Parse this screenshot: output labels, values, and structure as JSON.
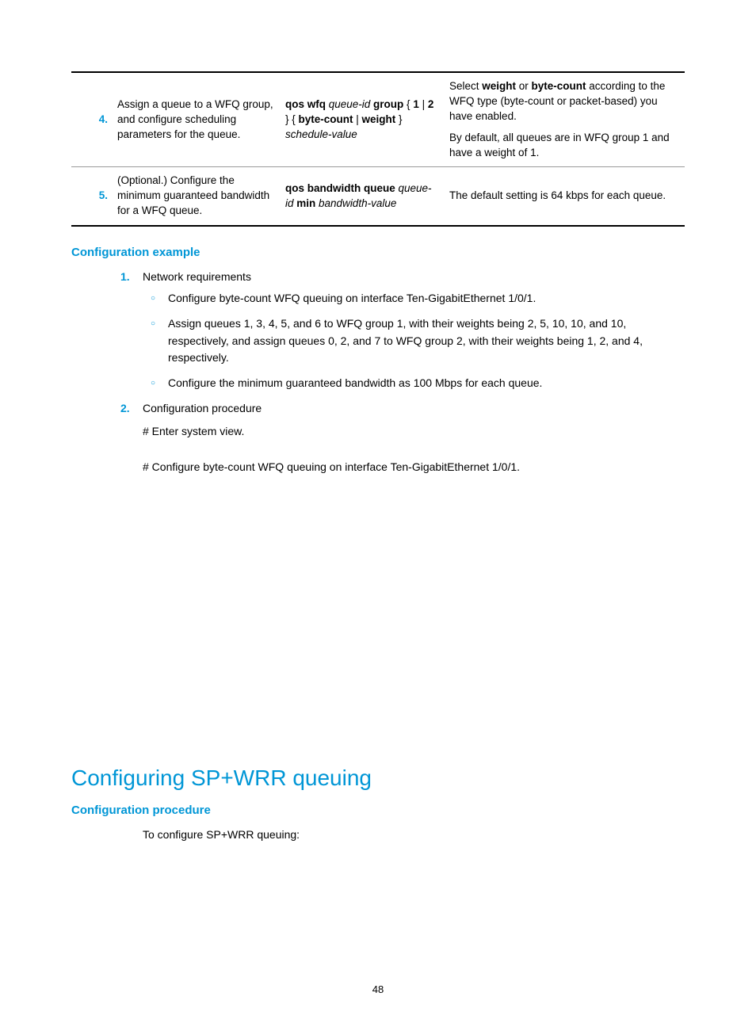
{
  "table": {
    "rows": [
      {
        "num": "4.",
        "desc": "Assign a queue to a WFQ group, and configure scheduling parameters for the queue.",
        "cmd_parts": [
          {
            "t": "qos wfq ",
            "b": true
          },
          {
            "t": "queue-id ",
            "i": true
          },
          {
            "t": "group ",
            "b": true
          },
          {
            "t": "{ ",
            "b": false
          },
          {
            "t": "1",
            "b": true
          },
          {
            "t": " | ",
            "b": false
          },
          {
            "t": "2",
            "b": true
          },
          {
            "t": " } { ",
            "b": false
          },
          {
            "t": "byte-count",
            "b": true
          },
          {
            "t": " | ",
            "b": false
          },
          {
            "t": "weight",
            "b": true
          },
          {
            "t": " } ",
            "b": false
          },
          {
            "t": "schedule-value",
            "i": true
          }
        ],
        "rem_top_parts": [
          {
            "t": "Select "
          },
          {
            "t": "weight",
            "b": true
          },
          {
            "t": " or "
          },
          {
            "t": "byte-count",
            "b": true
          },
          {
            "t": " according to the WFQ type (byte-count or packet-based) you have enabled."
          }
        ],
        "rem_bottom": "By default, all queues are in WFQ group 1 and have a weight of 1."
      },
      {
        "num": "5.",
        "desc": "(Optional.) Configure the minimum guaranteed bandwidth for a WFQ queue.",
        "cmd_parts": [
          {
            "t": "qos bandwidth queue ",
            "b": true
          },
          {
            "t": "queue-id ",
            "i": true
          },
          {
            "t": "min ",
            "b": true
          },
          {
            "t": "bandwidth-value",
            "i": true
          }
        ],
        "rem": "The default setting is 64 kbps for each queue."
      }
    ]
  },
  "section1": {
    "title": "Configuration example",
    "items": [
      {
        "num": "1.",
        "label": "Network requirements",
        "bullets": [
          "Configure byte-count WFQ queuing on interface Ten-GigabitEthernet 1/0/1.",
          "Assign queues 1, 3, 4, 5, and 6 to WFQ group 1, with their weights being 2, 5, 10, 10, and 10, respectively, and assign queues 0, 2, and 7 to WFQ group 2, with their weights being 1, 2, and 4, respectively.",
          "Configure the minimum guaranteed bandwidth as 100 Mbps for each queue."
        ]
      },
      {
        "num": "2.",
        "label": "Configuration procedure",
        "paras": [
          "# Enter system view.",
          "# Configure byte-count WFQ queuing on interface Ten-GigabitEthernet 1/0/1."
        ]
      }
    ]
  },
  "section2": {
    "title": "Configuring SP+WRR queuing",
    "subhead": "Configuration procedure",
    "text": "To configure SP+WRR queuing:"
  },
  "page_number": "48"
}
